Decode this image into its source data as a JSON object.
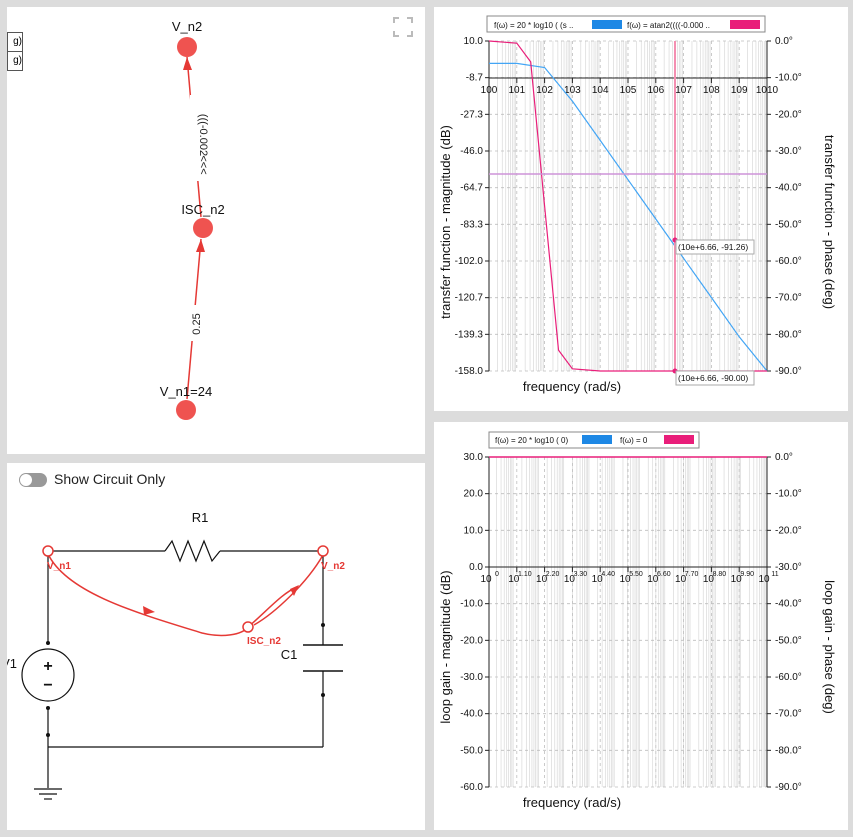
{
  "graph_panel": {
    "left_cells": [
      "g)",
      "g)"
    ],
    "nodes": [
      {
        "label": "V_n2"
      },
      {
        "label": "ISC_n2"
      },
      {
        "label": "V_n1=24"
      }
    ],
    "edges": [
      {
        "label": "(((-0.002"
      },
      {
        "label": "0.25"
      }
    ]
  },
  "circuit_panel": {
    "toggle_label": "Show Circuit Only",
    "components": {
      "resistor": "R1",
      "capacitor": "C1",
      "source": "V1"
    },
    "node_labels": [
      "V_n1",
      "V_n2",
      "ISC_n2"
    ],
    "source_symbols": {
      "plus": "+",
      "minus": "−"
    }
  },
  "transfer_function_chart": {
    "legend": [
      {
        "label": "f(ω) = 20 * log10 ( (s ..",
        "color": "#1e88e5"
      },
      {
        "label": "f(ω) = atan2((((-0.000 ..",
        "color": "#e91e7a"
      }
    ],
    "ylabel_left": "transfer function - magnitude (dB)",
    "ylabel_right": "transfer function - phase (deg)",
    "xlabel": "frequency (rad/s)",
    "left_ticks": [
      "10.0",
      "-8.7",
      "-27.3",
      "-46.0",
      "-64.7",
      "-83.3",
      "-102.0",
      "-120.7",
      "-139.3",
      "-158.0"
    ],
    "right_ticks": [
      "0.0°",
      "-10.0°",
      "-20.0°",
      "-30.0°",
      "-40.0°",
      "-50.0°",
      "-60.0°",
      "-70.0°",
      "-80.0°",
      "-90.0°"
    ],
    "x_ticks": [
      "100",
      "101",
      "102",
      "103",
      "104",
      "105",
      "106",
      "107",
      "108",
      "109",
      "1010"
    ],
    "markers": [
      {
        "text": "(10e+6.66, -91.26)"
      },
      {
        "text": "(10e+6.66, -90.00)"
      }
    ]
  },
  "loop_gain_chart": {
    "legend": [
      {
        "label": "f(ω) = 20 * log10 ( 0)",
        "color": "#1e88e5"
      },
      {
        "label": "f(ω) = 0",
        "color": "#e91e7a"
      }
    ],
    "ylabel_left": "loop gain - magnitude (dB)",
    "ylabel_right": "loop gain - phase (deg)",
    "xlabel": "frequency (rad/s)",
    "left_ticks": [
      "30.0",
      "20.0",
      "10.0",
      "0.0",
      "-10.0",
      "-20.0",
      "-30.0",
      "-40.0",
      "-50.0",
      "-60.0"
    ],
    "right_ticks": [
      "0.0°",
      "-10.0°",
      "-20.0°",
      "-30.0°",
      "-40.0°",
      "-50.0°",
      "-60.0°",
      "-70.0°",
      "-80.0°",
      "-90.0°"
    ],
    "x_tick_base": "10",
    "x_tick_exps": [
      "0",
      "1.10",
      "2.20",
      "3.30",
      "4.40",
      "5.50",
      "6.60",
      "7.70",
      "8.80",
      "9.90",
      "11"
    ]
  },
  "chart_data": [
    {
      "type": "line",
      "title": "",
      "xlabel": "frequency (rad/s)",
      "ylabel": "transfer function - magnitude (dB)",
      "ylabel_right": "transfer function - phase (deg)",
      "x_scale": "log",
      "xlim": [
        1,
        10000000000
      ],
      "ylim": [
        -158.0,
        10.0
      ],
      "ylim_right": [
        -90,
        0
      ],
      "grid": true,
      "legend_position": "top",
      "series": [
        {
          "name": "f(ω) = 20 * log10 ( (s ..",
          "axis": "left",
          "x": [
            1,
            10,
            100,
            1000,
            10000,
            100000,
            1000000,
            10000000,
            100000000,
            1000000000,
            10000000000
          ],
          "y": [
            -1.4,
            -1.4,
            -3.5,
            -20.6,
            -40.6,
            -60.6,
            -80.6,
            -100.6,
            -120.6,
            -140.6,
            -160.6
          ]
        },
        {
          "name": "f(ω) = atan2((((-0.000 ..",
          "axis": "right",
          "x": [
            1,
            10,
            31.6,
            100,
            316,
            1000,
            10000,
            10000000000
          ],
          "y": [
            0,
            -0.6,
            -5.7,
            -45,
            -84.3,
            -89.4,
            -90,
            -90
          ]
        }
      ],
      "annotations": [
        {
          "x": "10e+6.66",
          "y": -91.26,
          "text": "(10e+6.66, -91.26)"
        },
        {
          "x": "10e+6.66",
          "y": -90.0,
          "text": "(10e+6.66, -90.00)"
        }
      ]
    },
    {
      "type": "line",
      "title": "",
      "xlabel": "frequency (rad/s)",
      "ylabel": "loop gain - magnitude (dB)",
      "ylabel_right": "loop gain - phase (deg)",
      "x_scale": "log",
      "xlim": [
        1,
        100000000000
      ],
      "ylim": [
        -60,
        30
      ],
      "ylim_right": [
        -90,
        0
      ],
      "grid": true,
      "legend_position": "top",
      "series": [
        {
          "name": "f(ω) = 20 * log10 ( 0)",
          "axis": "left",
          "x": [
            1,
            100000000000
          ],
          "y": [
            30,
            30
          ]
        },
        {
          "name": "f(ω) = 0",
          "axis": "right",
          "x": [
            1,
            100000000000
          ],
          "y": [
            0,
            0
          ]
        }
      ]
    }
  ]
}
